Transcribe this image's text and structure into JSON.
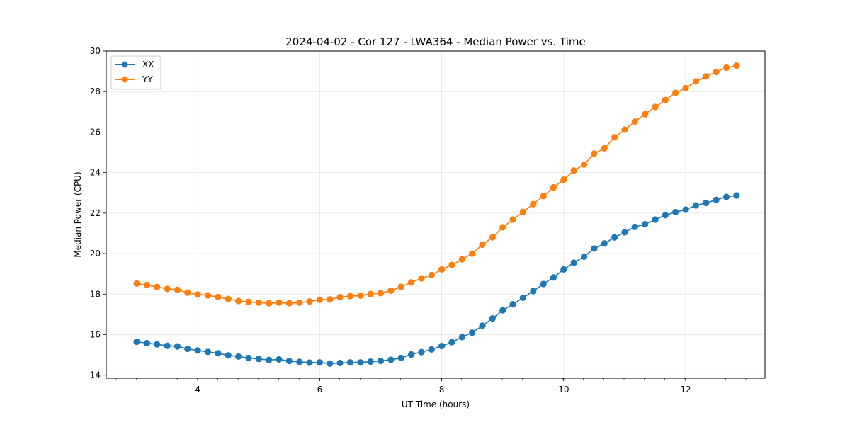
{
  "chart_data": {
    "type": "line",
    "title": "2024-04-02 - Cor 127 - LWA364 - Median Power vs. Time",
    "xlabel": "UT Time (hours)",
    "ylabel": "Median Power (CPU)",
    "xlim": [
      2.5,
      13.3
    ],
    "ylim": [
      13.85,
      30.0
    ],
    "xticks": [
      4,
      6,
      8,
      10,
      12
    ],
    "yticks": [
      14,
      16,
      18,
      20,
      22,
      24,
      26,
      28,
      30
    ],
    "x_minor_step": 0.333,
    "grid": true,
    "legend_position": "top-left",
    "x": [
      3.0,
      3.167,
      3.333,
      3.5,
      3.667,
      3.833,
      4.0,
      4.167,
      4.333,
      4.5,
      4.667,
      4.833,
      5.0,
      5.167,
      5.333,
      5.5,
      5.667,
      5.833,
      6.0,
      6.167,
      6.333,
      6.5,
      6.667,
      6.833,
      7.0,
      7.167,
      7.333,
      7.5,
      7.667,
      7.833,
      8.0,
      8.167,
      8.333,
      8.5,
      8.667,
      8.833,
      9.0,
      9.167,
      9.333,
      9.5,
      9.667,
      9.833,
      10.0,
      10.167,
      10.333,
      10.5,
      10.667,
      10.833,
      11.0,
      11.167,
      11.333,
      11.5,
      11.667,
      11.833,
      12.0,
      12.167,
      12.333,
      12.5,
      12.667,
      12.833
    ],
    "series": [
      {
        "name": "XX",
        "color": "#1f77b4",
        "values": [
          15.65,
          15.58,
          15.52,
          15.45,
          15.42,
          15.3,
          15.22,
          15.15,
          15.08,
          14.98,
          14.92,
          14.85,
          14.8,
          14.75,
          14.78,
          14.7,
          14.66,
          14.62,
          14.63,
          14.57,
          14.6,
          14.63,
          14.63,
          14.67,
          14.7,
          14.76,
          14.85,
          15.02,
          15.14,
          15.27,
          15.44,
          15.63,
          15.88,
          16.1,
          16.44,
          16.8,
          17.2,
          17.5,
          17.82,
          18.15,
          18.5,
          18.82,
          19.22,
          19.55,
          19.85,
          20.25,
          20.5,
          20.8,
          21.05,
          21.32,
          21.45,
          21.68,
          21.9,
          22.05,
          22.17,
          22.38,
          22.5,
          22.65,
          22.8,
          22.87
        ]
      },
      {
        "name": "YY",
        "color": "#ff7f0e",
        "values": [
          18.52,
          18.45,
          18.35,
          18.26,
          18.21,
          18.07,
          17.98,
          17.94,
          17.86,
          17.76,
          17.66,
          17.62,
          17.58,
          17.55,
          17.58,
          17.55,
          17.58,
          17.64,
          17.72,
          17.74,
          17.85,
          17.9,
          17.93,
          18.0,
          18.05,
          18.17,
          18.36,
          18.58,
          18.78,
          18.94,
          19.22,
          19.44,
          19.72,
          20.0,
          20.44,
          20.8,
          21.3,
          21.68,
          22.06,
          22.44,
          22.84,
          23.27,
          23.65,
          24.1,
          24.4,
          24.94,
          25.2,
          25.74,
          26.12,
          26.52,
          26.88,
          27.24,
          27.58,
          27.94,
          28.17,
          28.5,
          28.75,
          28.97,
          29.18,
          29.28
        ]
      }
    ]
  }
}
